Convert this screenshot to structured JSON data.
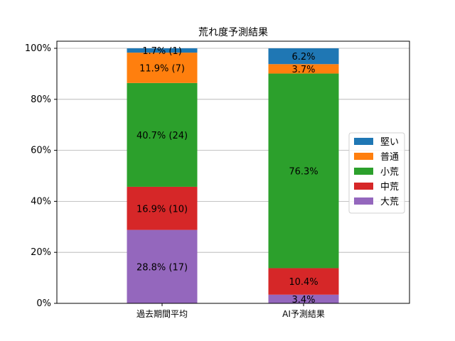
{
  "chart_data": {
    "type": "bar",
    "stacked": true,
    "title": "荒れ度予測結果",
    "xlabel": "",
    "ylabel": "",
    "ylim": [
      0,
      100
    ],
    "y_ticks": [
      "0%",
      "20%",
      "40%",
      "60%",
      "80%",
      "100%"
    ],
    "grid": "horizontal",
    "legend_position": "right",
    "categories": [
      "過去期間平均",
      "AI予測結果"
    ],
    "series": [
      {
        "name": "大荒",
        "color": "#9467bd",
        "values": [
          28.8,
          3.4
        ],
        "labels": [
          "28.8% (17)",
          "3.4%"
        ]
      },
      {
        "name": "中荒",
        "color": "#d62728",
        "values": [
          16.9,
          10.4
        ],
        "labels": [
          "16.9% (10)",
          "10.4%"
        ]
      },
      {
        "name": "小荒",
        "color": "#2ca02c",
        "values": [
          40.7,
          76.3
        ],
        "labels": [
          "40.7% (24)",
          "76.3%"
        ]
      },
      {
        "name": "普通",
        "color": "#ff7f0e",
        "values": [
          11.9,
          3.7
        ],
        "labels": [
          "11.9% (7)",
          "3.7%"
        ]
      },
      {
        "name": "堅い",
        "color": "#1f77b4",
        "values": [
          1.7,
          6.2
        ],
        "labels": [
          "1.7% (1)",
          "6.2%"
        ]
      }
    ],
    "legend_order": [
      "堅い",
      "普通",
      "小荒",
      "中荒",
      "大荒"
    ]
  }
}
